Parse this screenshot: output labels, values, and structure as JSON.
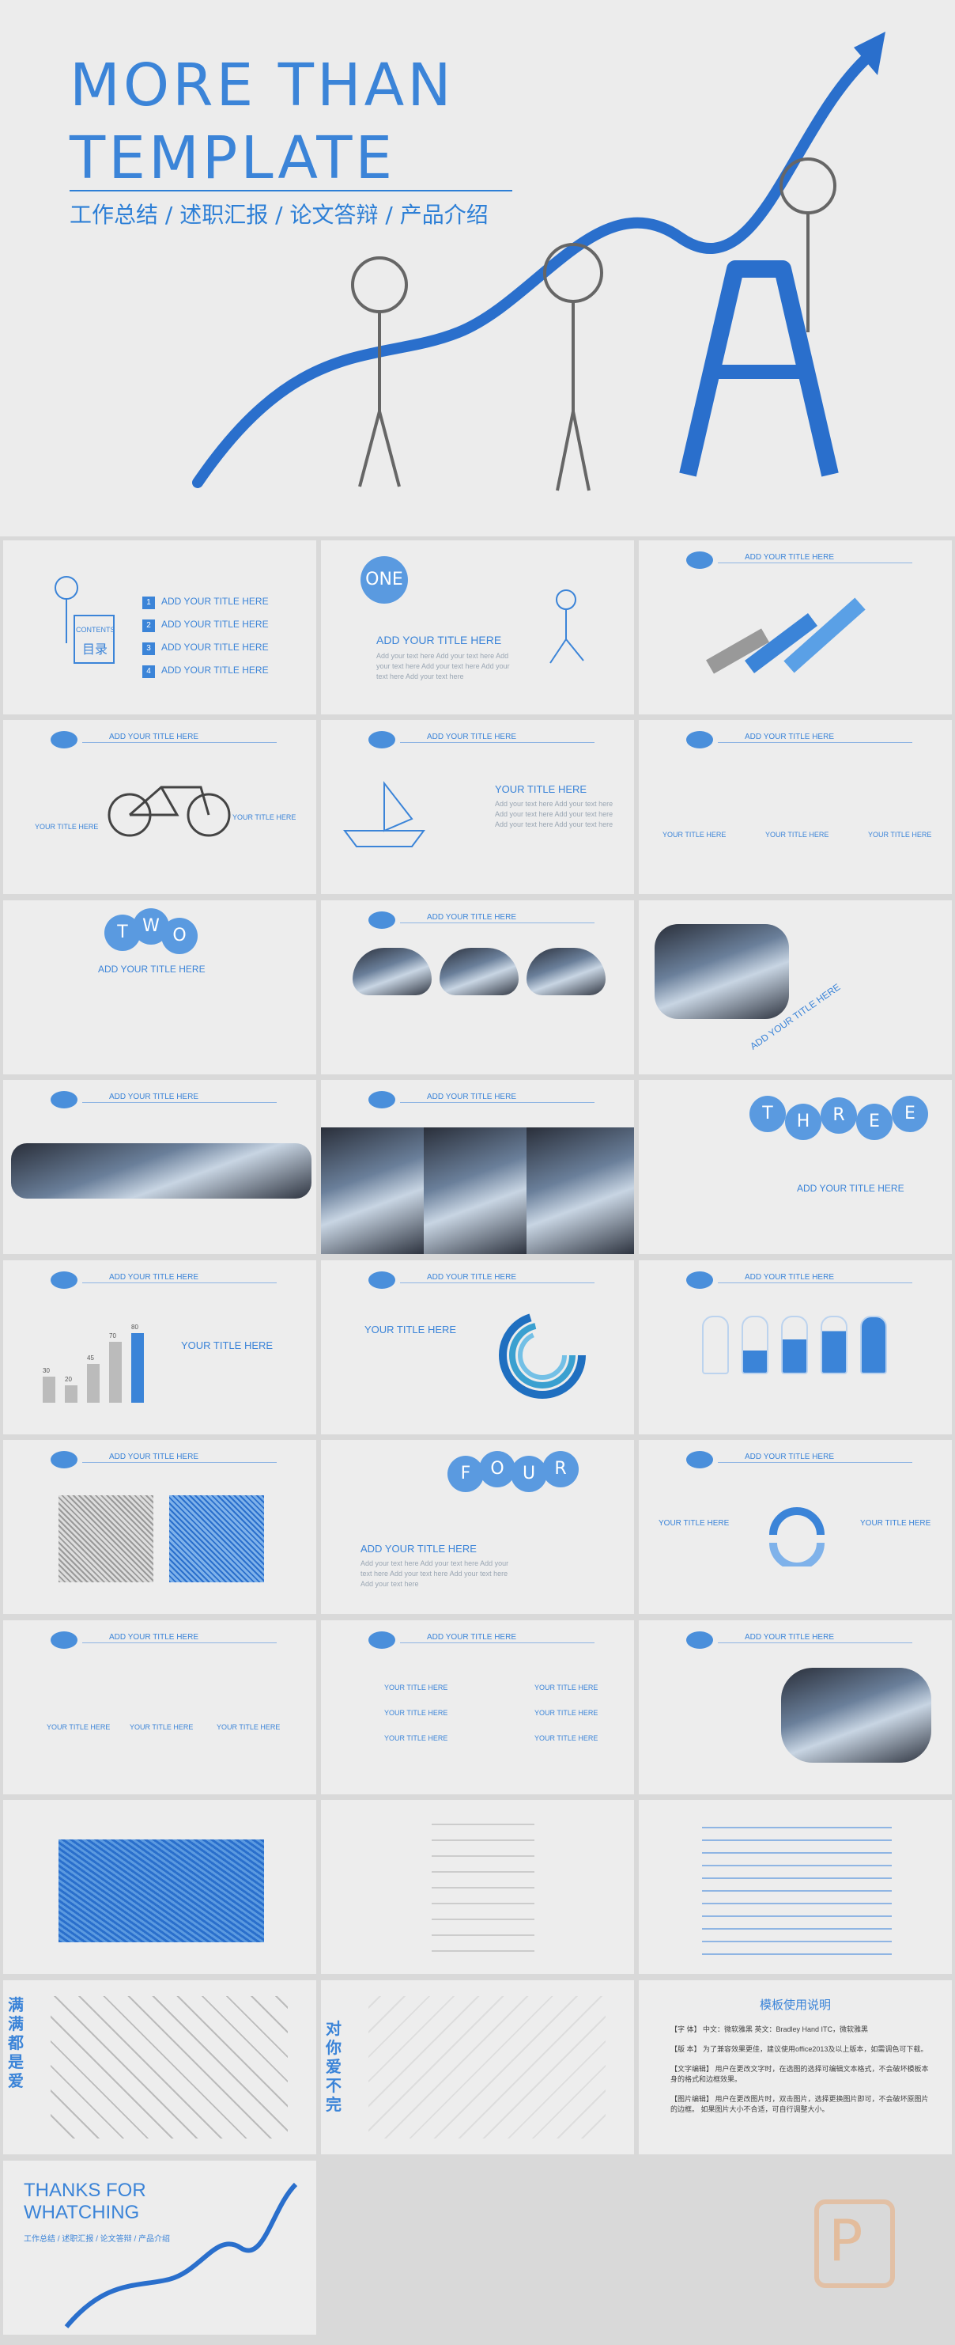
{
  "hero": {
    "title_line1": "MORE  THAN",
    "title_line2": "TEMPLATE",
    "subtitle": "工作总结 / 述职汇报 / 论文答辩 / 产品介绍"
  },
  "slides": {
    "contents_label": "CONTENTS",
    "contents_cn": "目录",
    "toc": [
      {
        "n": "1",
        "label": "ADD YOUR TITLE HERE"
      },
      {
        "n": "2",
        "label": "ADD YOUR TITLE HERE"
      },
      {
        "n": "3",
        "label": "ADD YOUR TITLE HERE"
      },
      {
        "n": "4",
        "label": "ADD YOUR TITLE HERE"
      }
    ],
    "section_one": "ONE",
    "section_two": "TWO",
    "section_three": "THREE",
    "section_four": "FOUR",
    "add_title": "ADD YOUR TITLE HERE",
    "your_title": "YOUR TITLE HERE",
    "filler": "Add your text here Add your text here Add your text here Add your text here Add your text here Add your text here",
    "bars": [
      "30",
      "20",
      "45",
      "70",
      "80"
    ],
    "guide": {
      "title": "模板使用说明",
      "lines": [
        "【字 体】 中文：微软雅黑 英文：Bradley Hand ITC，微软雅黑",
        "【版 本】 为了兼容效果更佳，建议使用office2013及以上版本，如需调色可下载。",
        "【文字编辑】 用户在更改文字时，在选图的选择可编辑文本格式，不会破坏模板本身的格式和边框效果。",
        "【图片编辑】 用户在更改图片时，双击图片，选择更换图片即可，不会破坏原图片的边框。 如果图片大小不合适，可自行调整大小。"
      ]
    },
    "side_text_a": "满满都是爱",
    "side_text_b": "对你爱不完",
    "thanks_line1": "THANKS FOR",
    "thanks_line2": "WHATCHING",
    "thanks_sub": "工作总结 / 述职汇报 / 论文答辩 / 产品介绍"
  },
  "colors": {
    "accent": "#3b84d8",
    "bg": "#ededed",
    "muted": "#9aa6b3"
  }
}
